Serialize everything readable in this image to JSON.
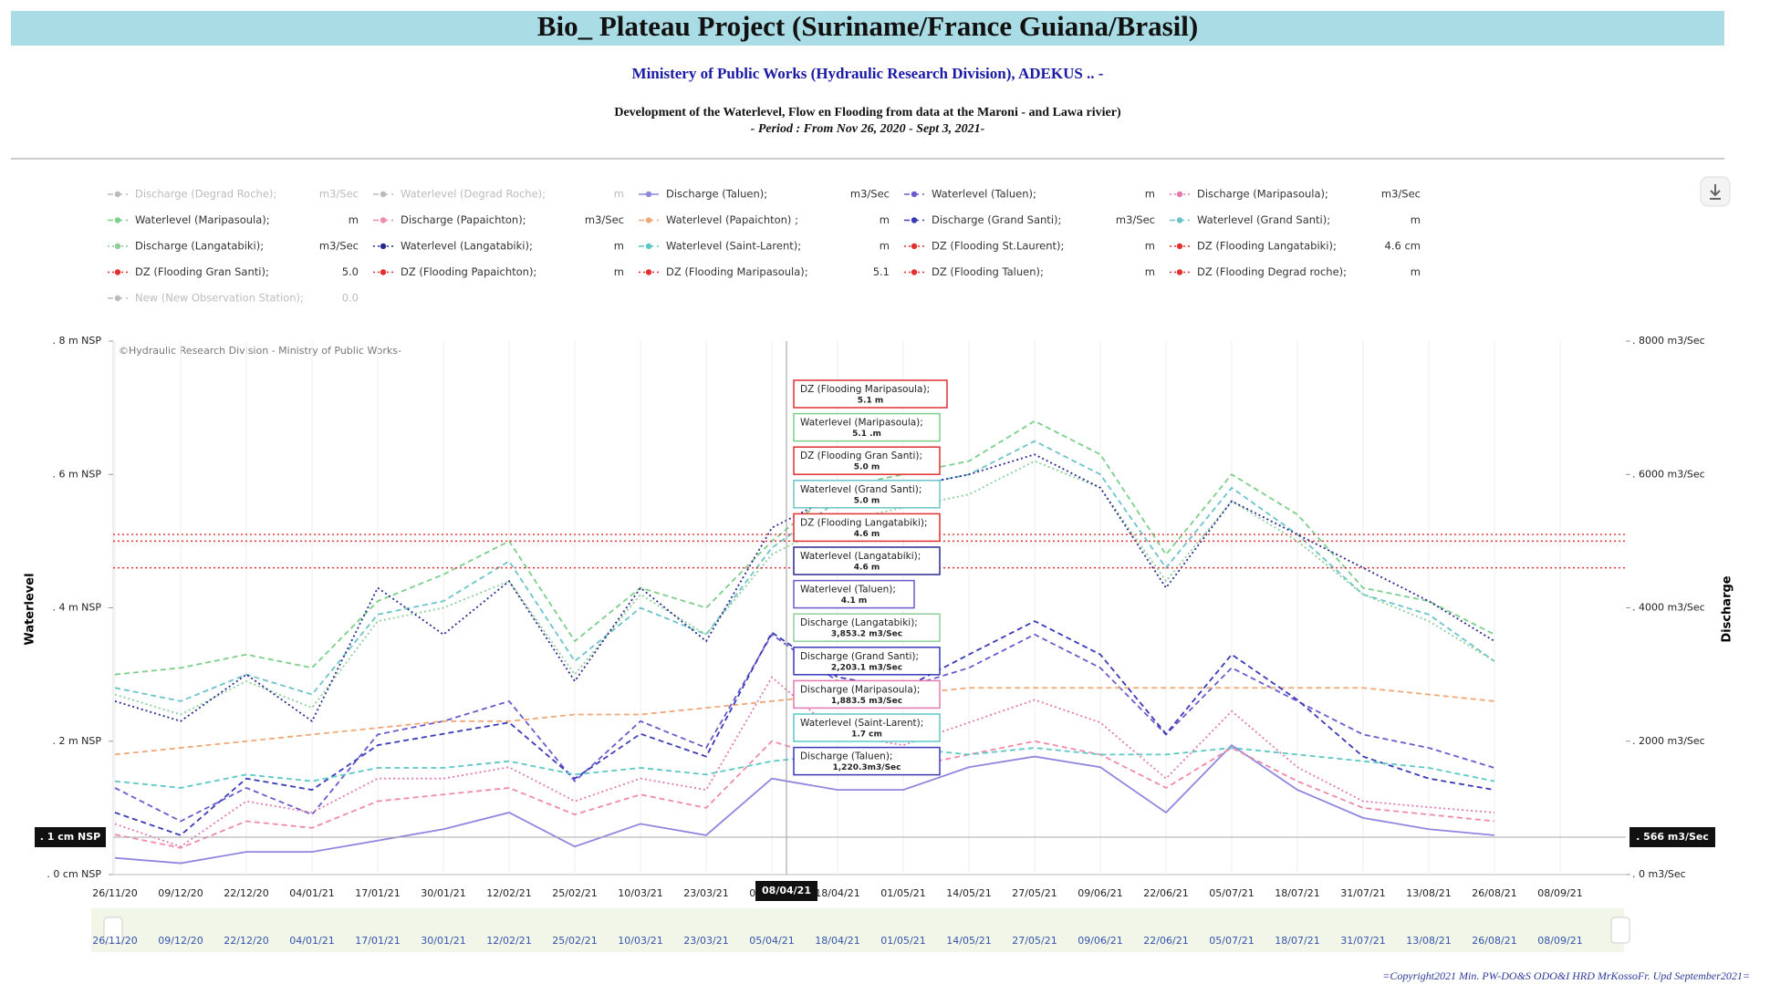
{
  "chart_data": {
    "type": "line",
    "title": "Bio_ Plateau Project (Suriname/France Guiana/Brasil)",
    "subtitle": "Ministery of Public Works (Hydraulic Research Division), ADEKUS .. -",
    "description": [
      "Development of the Waterlevel, Flow en Flooding from data at the Maroni - and Lawa rivier)",
      "- Period : From Nov 26, 2020 - Sept 3, 2021-"
    ],
    "credit": "©Hydraulic Research Division - Ministry of Public Works-",
    "copyright": "=Copyright2021 Min. PW-DO&S ODO&I HRD  MrKossoFr. Upd September2021=",
    "ylabel": "Waterlevel",
    "y2label": "Discharge",
    "ylim": [
      0,
      8
    ],
    "yticks": [
      {
        "value": 0,
        "label": ". 0 cm NSP"
      },
      {
        "value": 2,
        "label": ". 2  m NSP"
      },
      {
        "value": 4,
        "label": ". 4  m  NSP"
      },
      {
        "value": 6,
        "label": ". 6  m NSP"
      },
      {
        "value": 8,
        "label": ". 8  m NSP"
      }
    ],
    "y2lim": [
      0,
      8000
    ],
    "y2ticks": [
      {
        "value": 0,
        "label": ". 0 m3/Sec"
      },
      {
        "value": 2000,
        "label": ". 2000 m3/Sec"
      },
      {
        "value": 4000,
        "label": ". 4000 m3/Sec"
      },
      {
        "value": 6000,
        "label": ". 6000 m3/Sec"
      },
      {
        "value": 8000,
        "label": ". 8000 m3/Sec"
      }
    ],
    "grid": true,
    "x": [
      "26/11/20",
      "09/12/20",
      "22/12/20",
      "04/01/21",
      "17/01/21",
      "30/01/21",
      "12/02/21",
      "25/02/21",
      "10/03/21",
      "23/03/21",
      "05/04/21",
      "18/04/21",
      "01/05/21",
      "14/05/21",
      "27/05/21",
      "09/06/21",
      "22/06/21",
      "05/07/21",
      "18/07/21",
      "31/07/21",
      "13/08/21",
      "26/08/21",
      "08/09/21"
    ],
    "crosshair": {
      "x_label": "08/04/21",
      "y_label": ". 1 cm NSP",
      "y2_label": ". 566 m3/Sec"
    },
    "series": [
      {
        "name": "Discharge (Degrad Roche);",
        "unit": "m3/Sec",
        "color": "#aaaaaa",
        "dash": "dashed",
        "disabled": true
      },
      {
        "name": "Waterlevel (Degrad Roche);",
        "unit": "m",
        "color": "#aaaaaa",
        "dash": "dashed",
        "disabled": true
      },
      {
        "name": "Discharge (Taluen);",
        "unit": "m3/Sec",
        "color": "#8f86e0",
        "dash": "solid",
        "axis": "y2",
        "values": [
          250,
          170,
          340,
          340,
          510,
          680,
          930,
          420,
          760,
          590,
          1440,
          1270,
          1270,
          1610,
          1770,
          1610,
          930,
          1940,
          1270,
          850,
          680,
          590,
          null
        ]
      },
      {
        "name": "Waterlevel (Taluen);",
        "unit": "m",
        "color": "#6a5acd",
        "dash": "dashed",
        "values": [
          1.3,
          0.8,
          1.3,
          0.9,
          2.1,
          2.3,
          2.6,
          1.4,
          2.3,
          1.9,
          3.6,
          2.9,
          2.8,
          3.1,
          3.6,
          3.1,
          2.1,
          3.1,
          2.6,
          2.1,
          1.9,
          1.6,
          null
        ]
      },
      {
        "name": "Discharge (Maripasoula);",
        "unit": "m3/Sec",
        "color": "#e07ab0",
        "dash": "dotted",
        "axis": "y2",
        "values": [
          760,
          420,
          1100,
          930,
          1440,
          1440,
          1610,
          1100,
          1440,
          1270,
          2960,
          2110,
          1940,
          2280,
          2620,
          2280,
          1440,
          2450,
          1610,
          1100,
          1010,
          930,
          null
        ]
      },
      {
        "name": "Waterlevel (Maripasoula);",
        "unit": "m",
        "color": "#7ccf8a",
        "dash": "dashed",
        "values": [
          3.0,
          3.1,
          3.3,
          3.1,
          4.1,
          4.5,
          5.0,
          3.5,
          4.3,
          4.0,
          5.0,
          5.8,
          6.0,
          6.2,
          6.8,
          6.3,
          4.8,
          6.0,
          5.4,
          4.3,
          4.1,
          3.6,
          null
        ]
      },
      {
        "name": "Discharge (Papaichton);",
        "unit": "m3/Sec",
        "color": "#f08aa8",
        "dash": "dashed",
        "axis": "y2",
        "values": [
          600,
          400,
          800,
          700,
          1100,
          1200,
          1300,
          900,
          1200,
          1000,
          2000,
          1700,
          1600,
          1800,
          2000,
          1800,
          1300,
          1900,
          1400,
          1000,
          900,
          800,
          null
        ]
      },
      {
        "name": "Waterlevel (Papaichton) ;",
        "unit": "m",
        "color": "#f0a878",
        "dash": "dashed",
        "values": [
          1.8,
          1.9,
          2.0,
          2.1,
          2.2,
          2.3,
          2.3,
          2.4,
          2.4,
          2.5,
          2.6,
          2.7,
          2.7,
          2.8,
          2.8,
          2.8,
          2.8,
          2.8,
          2.8,
          2.8,
          2.7,
          2.6,
          null
        ]
      },
      {
        "name": "Discharge (Grand Santi);",
        "unit": "m3/Sec",
        "color": "#3a3ab8",
        "dash": "dashed",
        "axis": "y2",
        "values": [
          930,
          590,
          1440,
          1270,
          1940,
          2110,
          2280,
          1440,
          2110,
          1770,
          3630,
          2960,
          2790,
          3300,
          3800,
          3300,
          2110,
          3300,
          2620,
          1770,
          1440,
          1270,
          null
        ]
      },
      {
        "name": "Waterlevel (Grand Santi);",
        "unit": "m",
        "color": "#6cc4c8",
        "dash": "dashed",
        "values": [
          2.8,
          2.6,
          3.0,
          2.7,
          3.9,
          4.1,
          4.7,
          3.2,
          4.0,
          3.6,
          4.9,
          5.6,
          5.8,
          6.0,
          6.5,
          6.0,
          4.6,
          5.8,
          5.1,
          4.2,
          3.9,
          3.2,
          null
        ]
      },
      {
        "name": "Discharge (Langatabiki);",
        "unit": "m3/Sec",
        "color": "#8ccf9a",
        "dash": "dotted",
        "axis": "y2",
        "values": [
          2700,
          2400,
          2900,
          2500,
          3800,
          4000,
          4400,
          3000,
          4200,
          3600,
          4800,
          5300,
          5500,
          5700,
          6200,
          5800,
          4400,
          5600,
          5000,
          4200,
          3800,
          3200,
          null
        ]
      },
      {
        "name": "Waterlevel (Langatabiki);",
        "unit": "m",
        "color": "#2a2a90",
        "dash": "dotted",
        "values": [
          2.6,
          2.3,
          3.0,
          2.3,
          4.3,
          3.6,
          4.4,
          2.9,
          4.3,
          3.5,
          5.2,
          5.7,
          5.8,
          6.0,
          6.3,
          5.8,
          4.3,
          5.6,
          5.1,
          4.6,
          4.1,
          3.5,
          null
        ]
      },
      {
        "name": "Waterlevel (Saint-Larent);",
        "unit": "m",
        "color": "#5cc8c8",
        "dash": "dashed",
        "values": [
          1.4,
          1.3,
          1.5,
          1.4,
          1.6,
          1.6,
          1.7,
          1.5,
          1.6,
          1.5,
          1.7,
          1.8,
          1.9,
          1.8,
          1.9,
          1.8,
          1.8,
          1.9,
          1.8,
          1.7,
          1.6,
          1.4,
          null
        ]
      },
      {
        "name": "DZ (Flooding St.Laurent);",
        "unit": "m",
        "color": "#e03030",
        "dash": "dotted"
      },
      {
        "name": "DZ (Flooding Langatabiki);",
        "unit": "4.6 cm",
        "color": "#e03030",
        "dash": "dotted",
        "level": 4.6
      },
      {
        "name": "DZ (Flooding Gran Santi);",
        "unit": "5.0",
        "color": "#e03030",
        "dash": "dotted",
        "level": 5.0
      },
      {
        "name": "DZ (Flooding Papaichton);",
        "unit": "m",
        "color": "#e03030",
        "dash": "dotted"
      },
      {
        "name": "DZ (Flooding Maripasoula);",
        "unit": "5.1",
        "color": "#e03030",
        "dash": "dotted",
        "level": 5.1
      },
      {
        "name": "DZ (Flooding Taluen);",
        "unit": "m",
        "color": "#e03030",
        "dash": "dotted"
      },
      {
        "name": "DZ (Flooding Degrad roche);",
        "unit": "m",
        "color": "#e03030",
        "dash": "dotted"
      },
      {
        "name": "New (New Observation Station);",
        "unit": "0.0",
        "color": "#aaaaaa",
        "dash": "dashed",
        "disabled": true
      }
    ],
    "tooltips": [
      {
        "label": "DZ (Flooding Maripasoula);",
        "value": "5.1  m",
        "color": "#e03030"
      },
      {
        "label": "Waterlevel (Maripasoula);",
        "value": "5.1 .m",
        "color": "#7ccf8a"
      },
      {
        "label": "DZ (Flooding Gran Santi);",
        "value": "5.0  m",
        "color": "#e03030"
      },
      {
        "label": "Waterlevel (Grand Santi);",
        "value": "5.0  m",
        "color": "#6cc4c8"
      },
      {
        "label": "DZ (Flooding Langatabiki);",
        "value": "4.6  m",
        "color": "#e03030"
      },
      {
        "label": "Waterlevel (Langatabiki);",
        "value": "4.6  m",
        "color": "#2a2a90"
      },
      {
        "label": "Waterlevel (Taluen);",
        "value": "4.1  m",
        "color": "#6a5acd"
      },
      {
        "label": "Discharge (Langatabiki);",
        "value": "3,853.2 m3/Sec",
        "color": "#8ccf9a"
      },
      {
        "label": "Discharge (Grand Santi);",
        "value": "2,203.1 m3/Sec",
        "color": "#3a3ab8"
      },
      {
        "label": "Discharge (Maripasoula);",
        "value": "1,883.5 m3/Sec",
        "color": "#e07ab0"
      },
      {
        "label": "Waterlevel (Saint-Larent);",
        "value": "1.7 cm",
        "color": "#5cc8c8"
      },
      {
        "label": "Discharge (Taluen);",
        "value": "1,220.3m3/Sec",
        "color": "#3a3ab8"
      }
    ]
  }
}
